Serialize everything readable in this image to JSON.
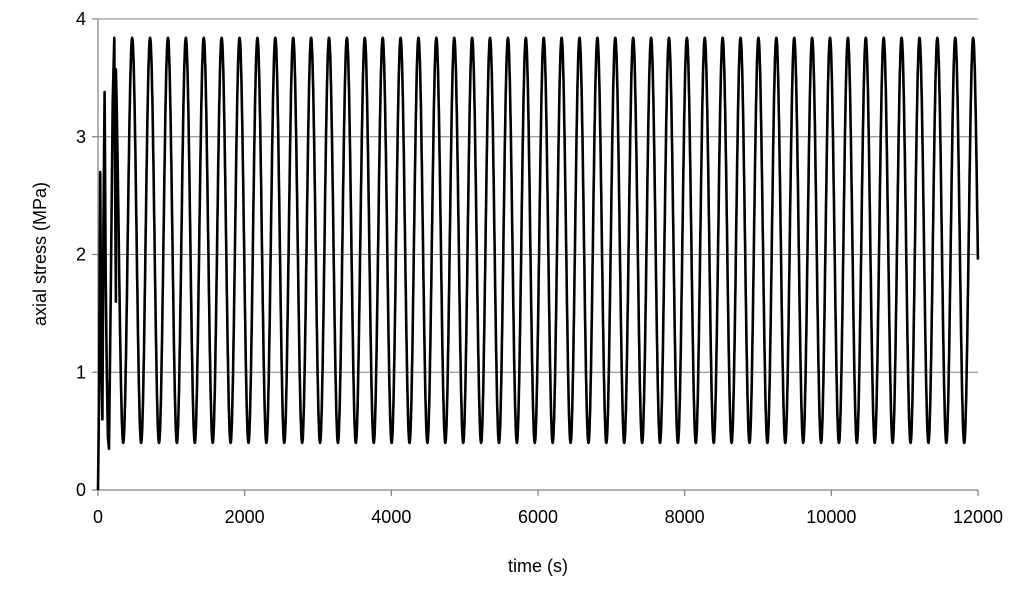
{
  "chart_data": {
    "type": "line",
    "xlabel": "time (s)",
    "ylabel": "axial stress (MPa)",
    "xlim": [
      0,
      12000
    ],
    "ylim": [
      0,
      4
    ],
    "x_ticks": [
      0,
      2000,
      4000,
      6000,
      8000,
      10000,
      12000
    ],
    "y_ticks": [
      0,
      1,
      2,
      3,
      4
    ],
    "grid": "horizontal",
    "legend": "none",
    "line_color": "#000000",
    "grid_color": "#808080",
    "series": [
      {
        "cycle_period_s": 244,
        "cycle_peak_mpa": 3.84,
        "cycle_trough_mpa": 0.4,
        "x": [
          0,
          15,
          30,
          45,
          60,
          75,
          90,
          105,
          120,
          135,
          150,
          175,
          200,
          222,
          235,
          244
        ],
        "y": [
          0.0,
          0.8,
          2.7,
          1.2,
          0.6,
          2.3,
          3.38,
          1.8,
          1.0,
          0.45,
          0.35,
          1.7,
          3.3,
          3.84,
          2.5,
          1.6
        ]
      }
    ]
  }
}
